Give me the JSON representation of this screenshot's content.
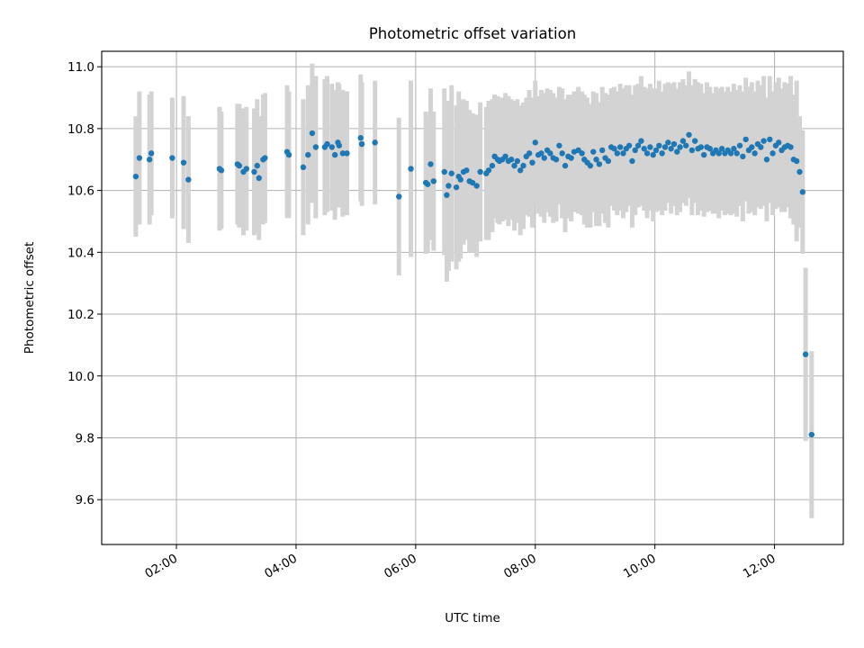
{
  "chart_data": {
    "type": "scatter",
    "title": "Photometric offset variation",
    "xlabel": "UTC time",
    "ylabel": "Photometric offset",
    "xlim_hours": [
      0.75,
      13.15
    ],
    "ylim": [
      9.455,
      11.05
    ],
    "x_ticks": [
      {
        "hour": 2,
        "label": "02:00"
      },
      {
        "hour": 4,
        "label": "04:00"
      },
      {
        "hour": 6,
        "label": "06:00"
      },
      {
        "hour": 8,
        "label": "08:00"
      },
      {
        "hour": 10,
        "label": "10:00"
      },
      {
        "hour": 12,
        "label": "12:00"
      }
    ],
    "y_ticks": [
      {
        "value": 9.6,
        "label": "9.6"
      },
      {
        "value": 9.8,
        "label": "9.8"
      },
      {
        "value": 10.0,
        "label": "10.0"
      },
      {
        "value": 10.2,
        "label": "10.2"
      },
      {
        "value": 10.4,
        "label": "10.4"
      },
      {
        "value": 10.6,
        "label": "10.6"
      },
      {
        "value": 10.8,
        "label": "10.8"
      },
      {
        "value": 11.0,
        "label": "11.0"
      }
    ],
    "grid": true,
    "colors": {
      "points": "#1f77b4",
      "errorbars": "#d3d3d3",
      "grid": "#b0b0b0"
    },
    "series": [
      {
        "name": "offset",
        "x_hours": [
          1.32,
          1.38,
          1.55,
          1.58,
          1.93,
          2.12,
          2.2,
          2.72,
          2.75,
          3.02,
          3.05,
          3.12,
          3.17,
          3.3,
          3.35,
          3.38,
          3.45,
          3.48,
          3.85,
          3.88,
          4.12,
          4.2,
          4.27,
          4.33,
          4.48,
          4.52,
          4.6,
          4.65,
          4.7,
          4.72,
          4.78,
          4.85,
          5.08,
          5.1,
          5.32,
          5.72,
          5.92,
          6.17,
          6.2,
          6.25,
          6.3,
          6.48,
          6.52,
          6.55,
          6.6,
          6.68,
          6.72,
          6.75,
          6.8,
          6.85,
          6.9,
          6.95,
          7.02,
          7.08,
          7.18,
          7.22,
          7.28,
          7.32,
          7.37,
          7.4,
          7.45,
          7.5,
          7.55,
          7.6,
          7.65,
          7.7,
          7.75,
          7.8,
          7.85,
          7.9,
          7.95,
          8.0,
          8.05,
          8.1,
          8.15,
          8.2,
          8.25,
          8.3,
          8.35,
          8.4,
          8.45,
          8.5,
          8.55,
          8.6,
          8.65,
          8.72,
          8.78,
          8.82,
          8.87,
          8.92,
          8.97,
          9.02,
          9.07,
          9.12,
          9.17,
          9.22,
          9.27,
          9.32,
          9.37,
          9.42,
          9.47,
          9.52,
          9.57,
          9.62,
          9.67,
          9.72,
          9.77,
          9.82,
          9.87,
          9.92,
          9.97,
          10.02,
          10.07,
          10.12,
          10.17,
          10.22,
          10.27,
          10.32,
          10.37,
          10.42,
          10.47,
          10.52,
          10.57,
          10.62,
          10.67,
          10.72,
          10.77,
          10.82,
          10.87,
          10.92,
          10.97,
          11.02,
          11.07,
          11.12,
          11.17,
          11.22,
          11.27,
          11.32,
          11.37,
          11.42,
          11.47,
          11.52,
          11.57,
          11.62,
          11.67,
          11.72,
          11.77,
          11.82,
          11.87,
          11.92,
          11.97,
          12.02,
          12.07,
          12.12,
          12.17,
          12.22,
          12.27,
          12.32,
          12.37,
          12.42,
          12.47,
          12.52,
          12.62
        ],
        "y": [
          10.645,
          10.705,
          10.7,
          10.72,
          10.705,
          10.69,
          10.635,
          10.67,
          10.665,
          10.685,
          10.68,
          10.66,
          10.67,
          10.66,
          10.68,
          10.64,
          10.7,
          10.705,
          10.725,
          10.715,
          10.675,
          10.715,
          10.785,
          10.74,
          10.74,
          10.75,
          10.74,
          10.715,
          10.755,
          10.745,
          10.72,
          10.72,
          10.77,
          10.75,
          10.755,
          10.58,
          10.67,
          10.625,
          10.62,
          10.685,
          10.63,
          10.66,
          10.585,
          10.615,
          10.655,
          10.61,
          10.645,
          10.635,
          10.66,
          10.665,
          10.63,
          10.625,
          10.615,
          10.66,
          10.655,
          10.665,
          10.68,
          10.71,
          10.7,
          10.695,
          10.7,
          10.71,
          10.695,
          10.7,
          10.68,
          10.695,
          10.665,
          10.68,
          10.71,
          10.72,
          10.69,
          10.755,
          10.715,
          10.72,
          10.705,
          10.73,
          10.72,
          10.705,
          10.7,
          10.745,
          10.72,
          10.68,
          10.71,
          10.705,
          10.725,
          10.73,
          10.72,
          10.7,
          10.69,
          10.68,
          10.725,
          10.7,
          10.685,
          10.73,
          10.705,
          10.695,
          10.74,
          10.735,
          10.72,
          10.74,
          10.72,
          10.735,
          10.745,
          10.695,
          10.73,
          10.745,
          10.76,
          10.735,
          10.72,
          10.74,
          10.715,
          10.73,
          10.745,
          10.72,
          10.74,
          10.755,
          10.735,
          10.75,
          10.725,
          10.74,
          10.76,
          10.745,
          10.78,
          10.73,
          10.76,
          10.735,
          10.74,
          10.715,
          10.74,
          10.735,
          10.72,
          10.73,
          10.72,
          10.735,
          10.72,
          10.73,
          10.72,
          10.735,
          10.72,
          10.745,
          10.71,
          10.765,
          10.73,
          10.74,
          10.72,
          10.75,
          10.74,
          10.76,
          10.7,
          10.765,
          10.72,
          10.745,
          10.755,
          10.73,
          10.74,
          10.745,
          10.74,
          10.7,
          10.695,
          10.66,
          10.595,
          10.07,
          9.81
        ],
        "err": [
          0.195,
          0.215,
          0.21,
          0.2,
          0.195,
          0.215,
          0.205,
          0.2,
          0.19,
          0.195,
          0.2,
          0.205,
          0.2,
          0.205,
          0.215,
          0.2,
          0.21,
          0.21,
          0.215,
          0.205,
          0.22,
          0.225,
          0.225,
          0.23,
          0.22,
          0.22,
          0.205,
          0.21,
          0.195,
          0.2,
          0.205,
          0.2,
          0.205,
          0.2,
          0.2,
          0.255,
          0.285,
          0.23,
          0.22,
          0.245,
          0.225,
          0.27,
          0.28,
          0.275,
          0.285,
          0.265,
          0.275,
          0.255,
          0.235,
          0.225,
          0.23,
          0.225,
          0.23,
          0.225,
          0.215,
          0.225,
          0.215,
          0.2,
          0.205,
          0.205,
          0.2,
          0.205,
          0.21,
          0.195,
          0.21,
          0.2,
          0.21,
          0.205,
          0.19,
          0.205,
          0.21,
          0.2,
          0.19,
          0.205,
          0.21,
          0.2,
          0.205,
          0.21,
          0.2,
          0.19,
          0.21,
          0.215,
          0.2,
          0.205,
          0.195,
          0.205,
          0.2,
          0.21,
          0.21,
          0.2,
          0.195,
          0.215,
          0.2,
          0.205,
          0.21,
          0.215,
          0.19,
          0.2,
          0.2,
          0.205,
          0.21,
          0.205,
          0.195,
          0.215,
          0.21,
          0.2,
          0.21,
          0.2,
          0.21,
          0.205,
          0.215,
          0.2,
          0.21,
          0.2,
          0.205,
          0.195,
          0.21,
          0.2,
          0.205,
          0.21,
          0.2,
          0.195,
          0.205,
          0.21,
          0.2,
          0.215,
          0.205,
          0.2,
          0.21,
          0.2,
          0.195,
          0.205,
          0.21,
          0.2,
          0.2,
          0.205,
          0.2,
          0.21,
          0.205,
          0.195,
          0.21,
          0.2,
          0.205,
          0.21,
          0.2,
          0.205,
          0.2,
          0.21,
          0.2,
          0.205,
          0.2,
          0.205,
          0.21,
          0.2,
          0.21,
          0.2,
          0.23,
          0.21,
          0.26,
          0.18,
          0.2,
          0.28,
          0.27
        ]
      }
    ]
  }
}
